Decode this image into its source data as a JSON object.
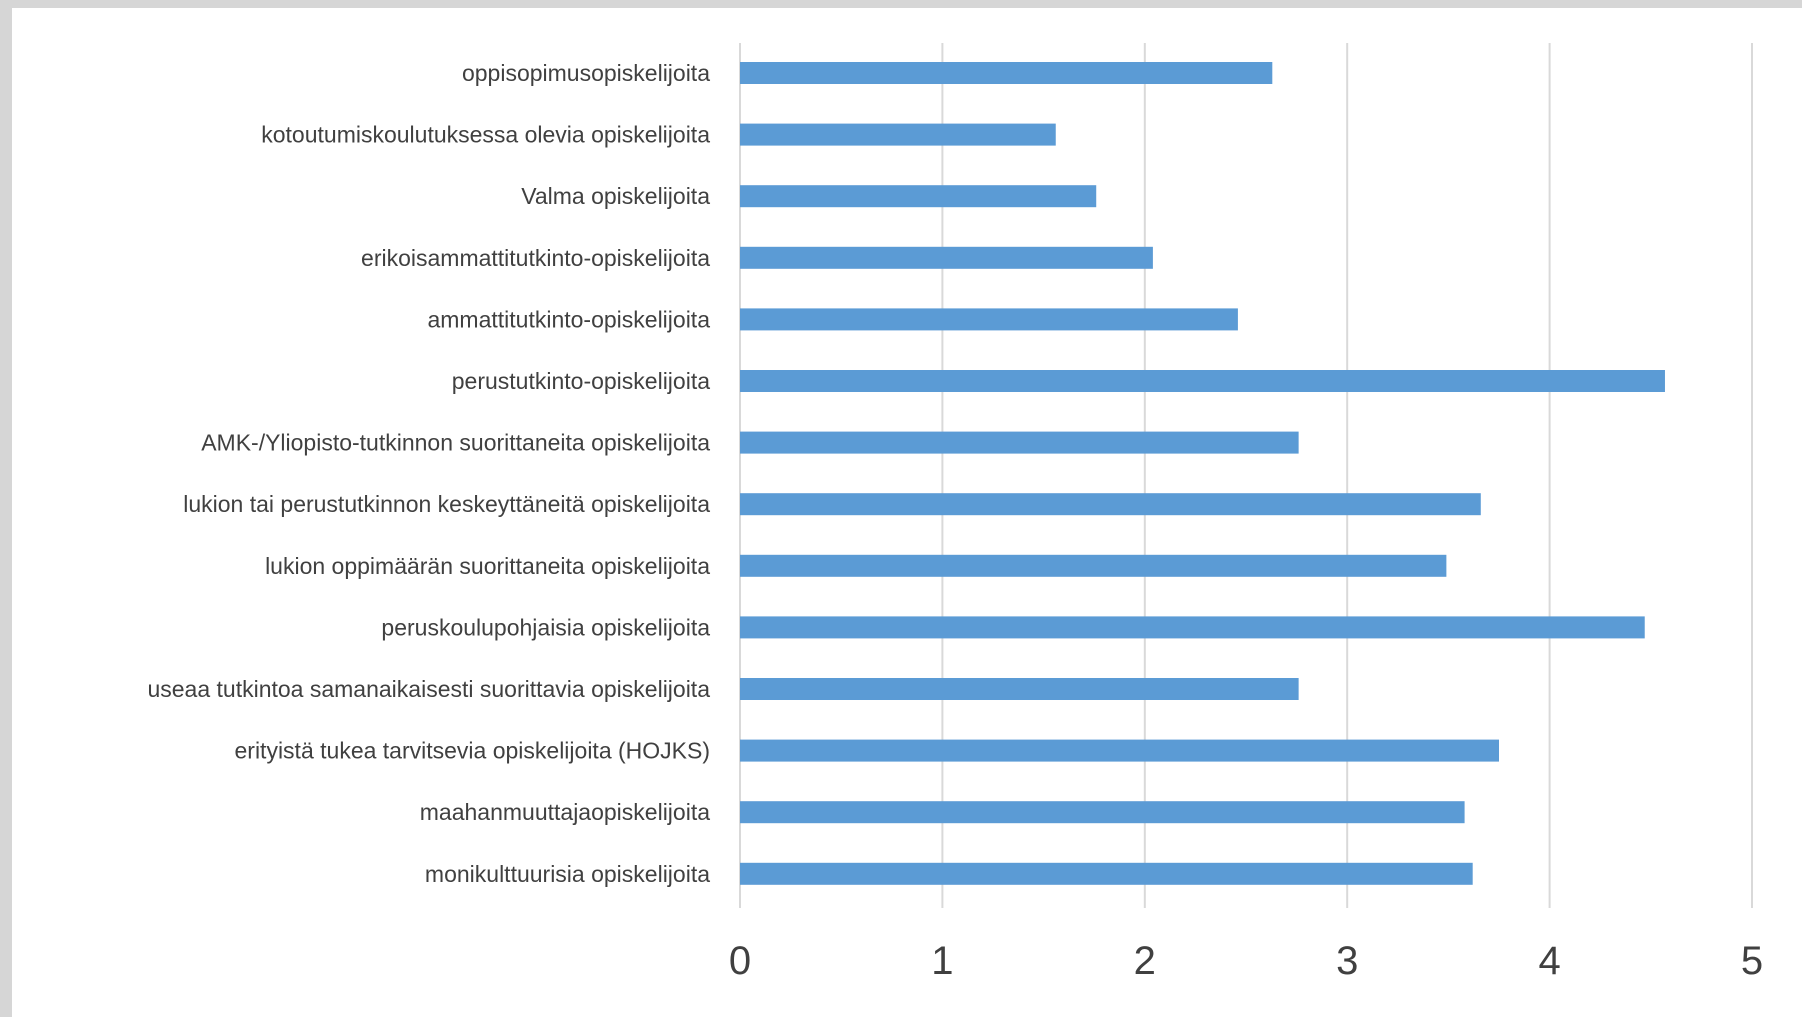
{
  "chart_data": {
    "type": "bar",
    "orientation": "horizontal",
    "categories": [
      "oppisopimusopiskelijoita",
      "kotoutumiskoulutuksessa olevia opiskelijoita",
      "Valma opiskelijoita",
      "erikoisammattitutkinto-opiskelijoita",
      "ammattitutkinto-opiskelijoita",
      "perustutkinto-opiskelijoita",
      "AMK-/Yliopisto-tutkinnon suorittaneita opiskelijoita",
      "lukion tai perustutkinnon keskeyttäneitä opiskelijoita",
      "lukion oppimäärän suorittaneita opiskelijoita",
      "peruskoulupohjaisia opiskelijoita",
      "useaa tutkintoa samanaikaisesti suorittavia opiskelijoita",
      "erityistä tukea tarvitsevia opiskelijoita (HOJKS)",
      "maahanmuuttajaopiskelijoita",
      "monikulttuurisia opiskelijoita"
    ],
    "values": [
      2.63,
      1.56,
      1.76,
      2.04,
      2.46,
      4.57,
      2.76,
      3.66,
      3.49,
      4.47,
      2.76,
      3.75,
      3.58,
      3.62
    ],
    "xlim": [
      0,
      5
    ],
    "ticks": [
      "0",
      "1",
      "2",
      "3",
      "4",
      "5"
    ],
    "title": "",
    "xlabel": "",
    "ylabel": "",
    "grid": "vertical",
    "legend": "none",
    "bar_color": "#5b9bd5",
    "grid_color": "#d9d9d9"
  }
}
